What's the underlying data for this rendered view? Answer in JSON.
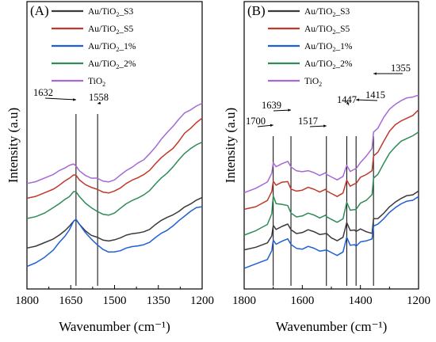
{
  "chart_data": [
    {
      "type": "line",
      "panel_label": "(A)",
      "xlabel": "Wavenumber (cm⁻¹)",
      "ylabel": "Intensity (a.u)",
      "xlim": [
        1800,
        1200
      ],
      "x_ticks": [
        "1800",
        "1650",
        "1500",
        "1350",
        "1200"
      ],
      "y_ticks_labeled": false,
      "legend_position": "top-center",
      "annotations": [
        {
          "text": "1632",
          "x": 1632
        },
        {
          "text": "1558",
          "x": 1558
        }
      ],
      "vertical_lines": [
        1632,
        1558
      ],
      "series": [
        {
          "name": "Au/TiO₂_S3",
          "name_base": "Au/TiO",
          "name_sub": "2",
          "name_suffix": "_S3",
          "color": "#3a3a3a",
          "x": [
            1800,
            1770,
            1740,
            1710,
            1690,
            1670,
            1655,
            1640,
            1632,
            1620,
            1600,
            1580,
            1560,
            1540,
            1520,
            1500,
            1480,
            1460,
            1440,
            1420,
            1400,
            1380,
            1360,
            1340,
            1320,
            1300,
            1280,
            1260,
            1240,
            1220,
            1200
          ],
          "y": [
            0.13,
            0.14,
            0.16,
            0.18,
            0.2,
            0.23,
            0.26,
            0.28,
            0.29,
            0.27,
            0.23,
            0.2,
            0.19,
            0.18,
            0.18,
            0.185,
            0.19,
            0.2,
            0.21,
            0.22,
            0.23,
            0.24,
            0.26,
            0.28,
            0.3,
            0.32,
            0.34,
            0.36,
            0.37,
            0.39,
            0.41
          ]
        },
        {
          "name": "Au/TiO₂_S5",
          "name_base": "Au/TiO",
          "name_sub": "2",
          "name_suffix": "_S5",
          "color": "#c0392b",
          "x": [
            1800,
            1770,
            1740,
            1710,
            1690,
            1670,
            1655,
            1640,
            1632,
            1620,
            1600,
            1580,
            1560,
            1540,
            1520,
            1500,
            1480,
            1460,
            1440,
            1420,
            1400,
            1380,
            1360,
            1340,
            1320,
            1300,
            1280,
            1260,
            1240,
            1220,
            1200
          ],
          "y": [
            0.4,
            0.41,
            0.43,
            0.45,
            0.47,
            0.5,
            0.52,
            0.53,
            0.53,
            0.51,
            0.48,
            0.46,
            0.45,
            0.44,
            0.44,
            0.45,
            0.46,
            0.48,
            0.5,
            0.52,
            0.54,
            0.56,
            0.59,
            0.62,
            0.65,
            0.68,
            0.72,
            0.76,
            0.78,
            0.81,
            0.84
          ]
        },
        {
          "name": "Au/TiO₂_1%",
          "name_base": "Au/TiO",
          "name_sub": "2",
          "name_suffix": "_1%",
          "color": "#1f5fd6",
          "x": [
            1800,
            1770,
            1740,
            1710,
            1690,
            1670,
            1655,
            1640,
            1632,
            1620,
            1600,
            1580,
            1560,
            1540,
            1520,
            1500,
            1480,
            1460,
            1440,
            1420,
            1400,
            1380,
            1360,
            1340,
            1320,
            1300,
            1280,
            1260,
            1240,
            1220,
            1200
          ],
          "y": [
            0.03,
            0.05,
            0.08,
            0.12,
            0.16,
            0.2,
            0.24,
            0.28,
            0.29,
            0.27,
            0.22,
            0.18,
            0.15,
            0.13,
            0.12,
            0.12,
            0.12,
            0.13,
            0.14,
            0.15,
            0.16,
            0.17,
            0.19,
            0.21,
            0.23,
            0.26,
            0.29,
            0.31,
            0.33,
            0.35,
            0.36
          ]
        },
        {
          "name": "Au/TiO₂_2%",
          "name_base": "Au/TiO",
          "name_sub": "2",
          "name_suffix": "_2%",
          "color": "#2e8b57",
          "x": [
            1800,
            1770,
            1740,
            1710,
            1690,
            1670,
            1655,
            1640,
            1632,
            1620,
            1600,
            1580,
            1560,
            1540,
            1520,
            1500,
            1480,
            1460,
            1440,
            1420,
            1400,
            1380,
            1360,
            1340,
            1320,
            1300,
            1280,
            1260,
            1240,
            1220,
            1200
          ],
          "y": [
            0.29,
            0.3,
            0.32,
            0.35,
            0.37,
            0.4,
            0.42,
            0.44,
            0.44,
            0.42,
            0.38,
            0.35,
            0.33,
            0.32,
            0.32,
            0.33,
            0.35,
            0.37,
            0.39,
            0.41,
            0.43,
            0.45,
            0.48,
            0.51,
            0.54,
            0.58,
            0.62,
            0.65,
            0.67,
            0.69,
            0.71
          ]
        },
        {
          "name": "TiO₂",
          "name_base": "TiO",
          "name_sub": "2",
          "name_suffix": "",
          "color": "#a569d6",
          "x": [
            1800,
            1770,
            1740,
            1710,
            1690,
            1670,
            1655,
            1640,
            1632,
            1620,
            1600,
            1580,
            1560,
            1540,
            1520,
            1500,
            1480,
            1460,
            1440,
            1420,
            1400,
            1380,
            1360,
            1340,
            1320,
            1300,
            1280,
            1260,
            1240,
            1220,
            1200
          ],
          "y": [
            0.48,
            0.49,
            0.51,
            0.53,
            0.55,
            0.57,
            0.59,
            0.59,
            0.58,
            0.56,
            0.53,
            0.51,
            0.51,
            0.5,
            0.5,
            0.51,
            0.53,
            0.55,
            0.57,
            0.6,
            0.62,
            0.65,
            0.68,
            0.72,
            0.76,
            0.8,
            0.84,
            0.87,
            0.88,
            0.9,
            0.92
          ]
        }
      ]
    },
    {
      "type": "line",
      "panel_label": "(B)",
      "xlabel": "Wavenumber (cm⁻¹)",
      "ylabel": "Intensity (a.u)",
      "xlim": [
        1800,
        1200
      ],
      "x_ticks": [
        "1800",
        "1600",
        "1400",
        "1200"
      ],
      "y_ticks_labeled": false,
      "legend_position": "top-center",
      "annotations": [
        {
          "text": "1700",
          "x": 1700
        },
        {
          "text": "1639",
          "x": 1639
        },
        {
          "text": "1517",
          "x": 1517
        },
        {
          "text": "1447",
          "x": 1447
        },
        {
          "text": "1415",
          "x": 1415
        },
        {
          "text": "1355",
          "x": 1355
        }
      ],
      "vertical_lines": [
        1700,
        1639,
        1517,
        1447,
        1415,
        1355
      ],
      "series": [
        {
          "name": "Au/TiO₂_S3",
          "name_base": "Au/TiO",
          "name_sub": "2",
          "name_suffix": "_S3",
          "color": "#3a3a3a",
          "x": [
            1800,
            1760,
            1720,
            1705,
            1700,
            1690,
            1670,
            1650,
            1639,
            1620,
            1600,
            1580,
            1560,
            1540,
            1520,
            1517,
            1500,
            1480,
            1460,
            1447,
            1435,
            1420,
            1415,
            1400,
            1380,
            1360,
            1355,
            1340,
            1320,
            1300,
            1280,
            1260,
            1240,
            1220,
            1200
          ],
          "y": [
            0.12,
            0.14,
            0.17,
            0.2,
            0.26,
            0.24,
            0.25,
            0.26,
            0.24,
            0.22,
            0.22,
            0.23,
            0.22,
            0.21,
            0.22,
            0.21,
            0.19,
            0.18,
            0.2,
            0.27,
            0.23,
            0.24,
            0.22,
            0.24,
            0.23,
            0.22,
            0.29,
            0.3,
            0.33,
            0.36,
            0.38,
            0.4,
            0.42,
            0.43,
            0.45
          ]
        },
        {
          "name": "Au/TiO₂_S5",
          "name_base": "Au/TiO",
          "name_sub": "2",
          "name_suffix": "_S5",
          "color": "#c0392b",
          "x": [
            1800,
            1760,
            1720,
            1705,
            1700,
            1690,
            1670,
            1650,
            1639,
            1620,
            1600,
            1580,
            1560,
            1540,
            1520,
            1517,
            1500,
            1480,
            1460,
            1447,
            1435,
            1420,
            1415,
            1400,
            1380,
            1360,
            1355,
            1340,
            1320,
            1300,
            1280,
            1260,
            1240,
            1220,
            1200
          ],
          "y": [
            0.34,
            0.36,
            0.4,
            0.44,
            0.5,
            0.48,
            0.49,
            0.49,
            0.46,
            0.45,
            0.45,
            0.46,
            0.45,
            0.44,
            0.46,
            0.44,
            0.43,
            0.42,
            0.44,
            0.5,
            0.47,
            0.49,
            0.48,
            0.52,
            0.54,
            0.56,
            0.63,
            0.66,
            0.72,
            0.77,
            0.8,
            0.82,
            0.84,
            0.86,
            0.89
          ]
        },
        {
          "name": "Au/TiO₂_1%",
          "name_base": "Au/TiO",
          "name_sub": "2",
          "name_suffix": "_1%",
          "color": "#1f5fd6",
          "x": [
            1800,
            1760,
            1720,
            1705,
            1700,
            1690,
            1670,
            1650,
            1639,
            1620,
            1600,
            1580,
            1560,
            1540,
            1520,
            1517,
            1500,
            1480,
            1460,
            1447,
            1435,
            1420,
            1415,
            1400,
            1380,
            1360,
            1355,
            1340,
            1320,
            1300,
            1280,
            1260,
            1240,
            1220,
            1200
          ],
          "y": [
            0.02,
            0.05,
            0.08,
            0.12,
            0.18,
            0.16,
            0.17,
            0.18,
            0.16,
            0.14,
            0.13,
            0.14,
            0.13,
            0.12,
            0.13,
            0.12,
            0.11,
            0.1,
            0.12,
            0.19,
            0.15,
            0.16,
            0.14,
            0.17,
            0.18,
            0.19,
            0.25,
            0.27,
            0.3,
            0.33,
            0.35,
            0.37,
            0.39,
            0.4,
            0.42
          ]
        },
        {
          "name": "Au/TiO₂_2%",
          "name_base": "Au/TiO",
          "name_sub": "2",
          "name_suffix": "_2%",
          "color": "#2e8b57",
          "x": [
            1800,
            1760,
            1720,
            1705,
            1700,
            1690,
            1670,
            1650,
            1639,
            1620,
            1600,
            1580,
            1560,
            1540,
            1520,
            1517,
            1500,
            1480,
            1460,
            1447,
            1435,
            1420,
            1415,
            1400,
            1380,
            1360,
            1355,
            1340,
            1320,
            1300,
            1280,
            1260,
            1240,
            1220,
            1200
          ],
          "y": [
            0.2,
            0.23,
            0.27,
            0.32,
            0.42,
            0.38,
            0.37,
            0.36,
            0.33,
            0.31,
            0.31,
            0.32,
            0.31,
            0.3,
            0.32,
            0.3,
            0.29,
            0.28,
            0.3,
            0.38,
            0.34,
            0.35,
            0.34,
            0.38,
            0.4,
            0.43,
            0.51,
            0.54,
            0.6,
            0.65,
            0.68,
            0.71,
            0.73,
            0.75,
            0.77
          ]
        },
        {
          "name": "TiO₂",
          "name_base": "TiO",
          "name_sub": "2",
          "name_suffix": "",
          "color": "#a569d6",
          "x": [
            1800,
            1760,
            1720,
            1705,
            1700,
            1690,
            1670,
            1650,
            1639,
            1620,
            1600,
            1580,
            1560,
            1540,
            1520,
            1517,
            1500,
            1480,
            1460,
            1447,
            1435,
            1420,
            1415,
            1400,
            1380,
            1360,
            1355,
            1340,
            1320,
            1300,
            1280,
            1260,
            1240,
            1220,
            1200
          ],
          "y": [
            0.43,
            0.46,
            0.5,
            0.54,
            0.6,
            0.58,
            0.59,
            0.6,
            0.58,
            0.56,
            0.55,
            0.55,
            0.54,
            0.53,
            0.55,
            0.53,
            0.52,
            0.51,
            0.53,
            0.58,
            0.55,
            0.57,
            0.56,
            0.6,
            0.64,
            0.68,
            0.76,
            0.79,
            0.85,
            0.89,
            0.91,
            0.93,
            0.95,
            0.96,
            0.97
          ]
        }
      ]
    }
  ]
}
